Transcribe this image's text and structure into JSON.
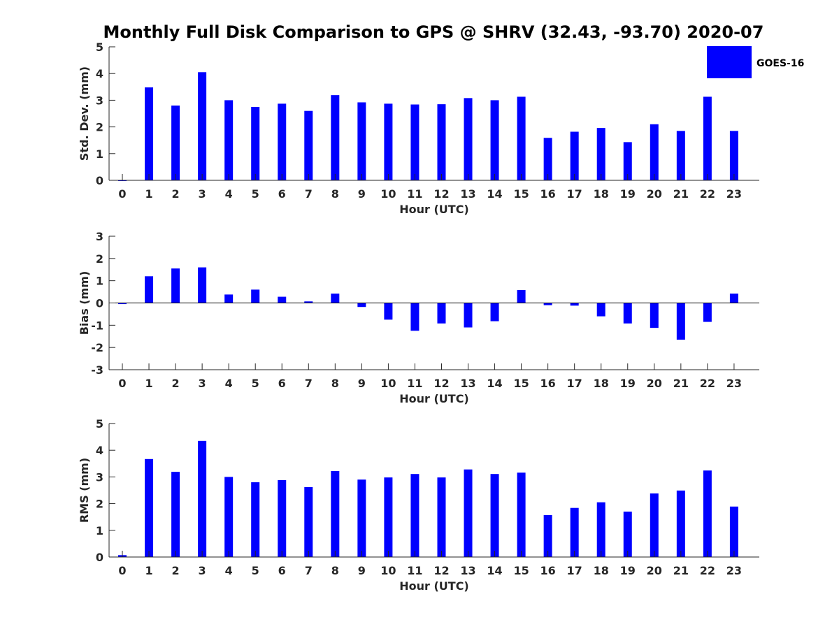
{
  "chart_data": {
    "type": "bar",
    "title": "Monthly Full Disk Comparison to GPS @ SHRV (32.43, -93.70) 2020-07",
    "legend": {
      "entries": [
        "GOES-16"
      ],
      "placement": "top-right",
      "color": "#0000ff"
    },
    "bar_color": "#0000ff",
    "categories": [
      "0",
      "1",
      "2",
      "3",
      "4",
      "5",
      "6",
      "7",
      "8",
      "9",
      "10",
      "11",
      "12",
      "13",
      "14",
      "15",
      "16",
      "17",
      "18",
      "19",
      "20",
      "21",
      "22",
      "23"
    ],
    "panels": [
      {
        "ylabel": "Std. Dev. (mm)",
        "xlabel": "Hour (UTC)",
        "ylim": [
          0,
          5
        ],
        "yticks": [
          "0",
          "1",
          "2",
          "3",
          "4",
          "5"
        ],
        "series": [
          {
            "name": "GOES-16",
            "values": [
              0,
              3.48,
              2.8,
              4.05,
              3.0,
              2.75,
              2.87,
              2.6,
              3.19,
              2.92,
              2.87,
              2.84,
              2.85,
              3.08,
              3.0,
              3.13,
              1.59,
              1.82,
              1.96,
              1.43,
              2.1,
              1.85,
              3.13,
              1.85
            ]
          }
        ]
      },
      {
        "ylabel": "Bias (mm)",
        "xlabel": "Hour (UTC)",
        "ylim": [
          -3,
          3
        ],
        "yticks": [
          "-3",
          "-2",
          "-1",
          "0",
          "1",
          "2",
          "3"
        ],
        "zero_line": true,
        "series": [
          {
            "name": "GOES-16",
            "values": [
              -0.05,
              1.2,
              1.55,
              1.6,
              0.38,
              0.6,
              0.28,
              0.07,
              0.42,
              -0.18,
              -0.75,
              -1.25,
              -0.92,
              -1.1,
              -0.82,
              0.58,
              -0.1,
              -0.12,
              -0.6,
              -0.92,
              -1.12,
              -1.65,
              -0.85,
              0.42
            ]
          }
        ]
      },
      {
        "ylabel": "RMS (mm)",
        "xlabel": "Hour (UTC)",
        "ylim": [
          0,
          5
        ],
        "yticks": [
          "0",
          "1",
          "2",
          "3",
          "4",
          "5"
        ],
        "series": [
          {
            "name": "GOES-16",
            "values": [
              0.07,
              3.67,
              3.19,
              4.35,
              3.0,
              2.8,
              2.88,
              2.62,
              3.22,
              2.9,
              2.98,
              3.11,
              2.98,
              3.28,
              3.11,
              3.16,
              1.57,
              1.84,
              2.05,
              1.7,
              2.38,
              2.49,
              3.24,
              1.89
            ]
          }
        ]
      }
    ]
  }
}
